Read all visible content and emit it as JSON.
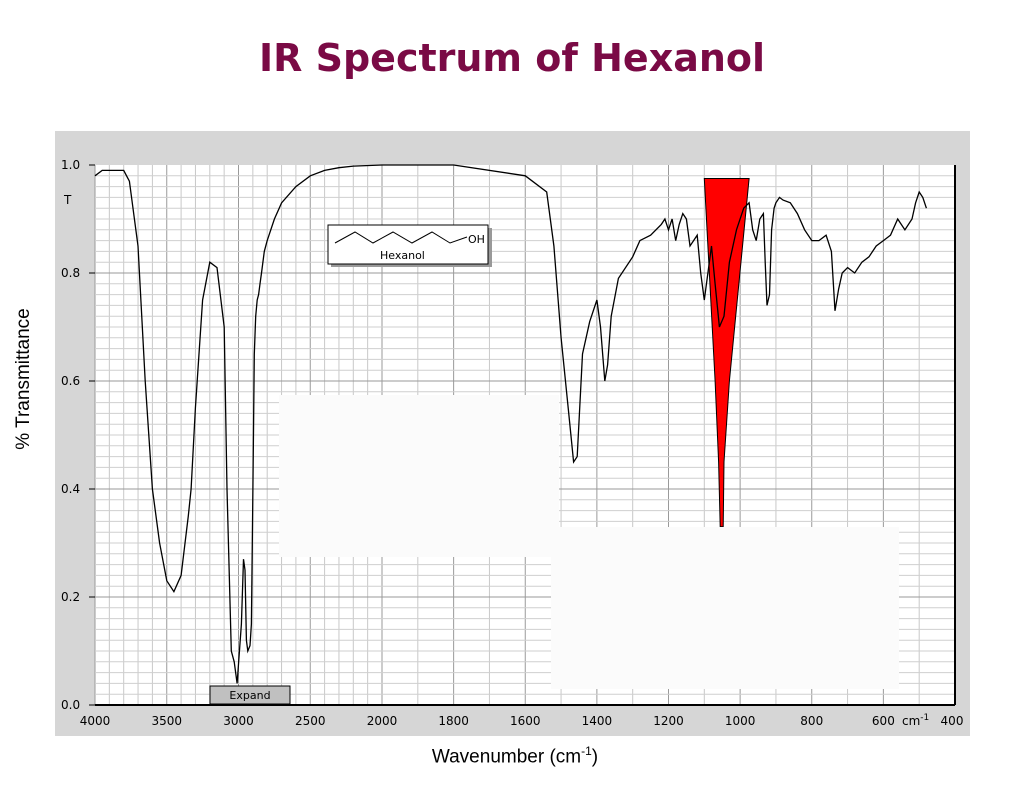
{
  "title": "IR Spectrum of Hexanol",
  "chart_data": {
    "type": "line",
    "title": "IR Spectrum of Hexanol",
    "xlabel": "Wavenumber (cm-1)",
    "xlabel_main": "Wavenumber (cm",
    "xlabel_sup": "-1",
    "xlabel_end": ")",
    "ylabel": "% Transmittance",
    "y_axis_letter": "T",
    "x_unit_label": "cm",
    "x_unit_sup": "-1",
    "xlim": [
      4000,
      400
    ],
    "ylim": [
      0.0,
      1.0
    ],
    "x_reversed": true,
    "grid": true,
    "x_ticks": [
      4000,
      3500,
      3000,
      2500,
      2000,
      1800,
      1600,
      1400,
      1200,
      1000,
      800,
      600,
      400
    ],
    "y_ticks": [
      "0.0",
      "0.2",
      "0.4",
      "0.6",
      "0.8",
      "1.0"
    ],
    "annotation": {
      "molecule_label": "Hexanol",
      "group_label": "OH"
    },
    "expand_button": "Expand",
    "highlight": {
      "color": "#ff0000",
      "x_range": [
        1100,
        975
      ],
      "tip_x": 1050,
      "tip_y": 0.33,
      "top_y": 0.975
    },
    "series": [
      {
        "color": "#000000",
        "x": [
          4000,
          3950,
          3900,
          3850,
          3800,
          3760,
          3700,
          3650,
          3600,
          3550,
          3500,
          3450,
          3400,
          3350,
          3330,
          3300,
          3250,
          3200,
          3150,
          3100,
          3080,
          3050,
          3030,
          3010,
          2980,
          2965,
          2955,
          2945,
          2935,
          2920,
          2910,
          2900,
          2890,
          2880,
          2870,
          2860,
          2850,
          2840,
          2820,
          2800,
          2750,
          2700,
          2600,
          2500,
          2400,
          2300,
          2200,
          2000,
          1800,
          1600,
          1540,
          1520,
          1500,
          1480,
          1465,
          1455,
          1440,
          1420,
          1400,
          1390,
          1378,
          1370,
          1360,
          1340,
          1300,
          1280,
          1250,
          1220,
          1210,
          1200,
          1190,
          1180,
          1170,
          1160,
          1150,
          1140,
          1130,
          1120,
          1110,
          1100,
          1090,
          1080,
          1070,
          1058,
          1045,
          1030,
          1010,
          990,
          975,
          965,
          955,
          945,
          935,
          930,
          925,
          918,
          912,
          905,
          900,
          890,
          880,
          860,
          840,
          820,
          800,
          780,
          760,
          745,
          735,
          725,
          715,
          700,
          680,
          660,
          640,
          620,
          600,
          580,
          560,
          540,
          520,
          510,
          500,
          490,
          480
        ],
        "y": [
          0.98,
          0.99,
          0.99,
          0.99,
          0.99,
          0.97,
          0.85,
          0.6,
          0.4,
          0.3,
          0.23,
          0.21,
          0.24,
          0.35,
          0.4,
          0.55,
          0.75,
          0.82,
          0.81,
          0.7,
          0.4,
          0.1,
          0.08,
          0.04,
          0.15,
          0.27,
          0.25,
          0.12,
          0.1,
          0.11,
          0.15,
          0.4,
          0.65,
          0.72,
          0.75,
          0.76,
          0.78,
          0.8,
          0.84,
          0.86,
          0.9,
          0.93,
          0.96,
          0.98,
          0.99,
          0.995,
          0.998,
          1.0,
          1.0,
          0.98,
          0.95,
          0.85,
          0.68,
          0.55,
          0.45,
          0.46,
          0.65,
          0.71,
          0.75,
          0.7,
          0.6,
          0.63,
          0.72,
          0.79,
          0.83,
          0.86,
          0.87,
          0.89,
          0.9,
          0.88,
          0.9,
          0.86,
          0.89,
          0.91,
          0.9,
          0.85,
          0.86,
          0.87,
          0.8,
          0.75,
          0.8,
          0.85,
          0.78,
          0.7,
          0.72,
          0.82,
          0.88,
          0.92,
          0.93,
          0.88,
          0.86,
          0.9,
          0.91,
          0.82,
          0.74,
          0.76,
          0.88,
          0.92,
          0.93,
          0.94,
          0.935,
          0.93,
          0.91,
          0.88,
          0.86,
          0.86,
          0.87,
          0.84,
          0.73,
          0.77,
          0.8,
          0.81,
          0.8,
          0.82,
          0.83,
          0.85,
          0.86,
          0.87,
          0.9,
          0.88,
          0.9,
          0.93,
          0.95,
          0.94,
          0.92
        ]
      }
    ]
  }
}
